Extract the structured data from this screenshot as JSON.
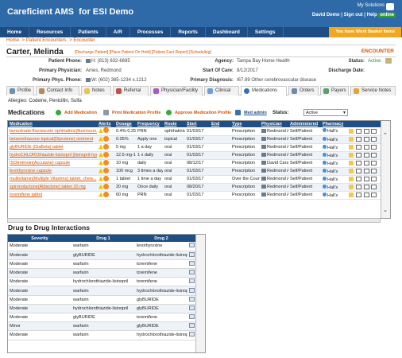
{
  "header": {
    "app_title": "Careficient AMS",
    "org": "for ESI Demo",
    "my_solutions": "My Solutions",
    "user": "David Demo",
    "sign_out": "Sign out",
    "help": "Help",
    "online": "online"
  },
  "nav": [
    "Home",
    "Resources",
    "Patients",
    "A/R",
    "Processes",
    "Reports",
    "Dashboard",
    "Settings"
  ],
  "basket": "You have Work Basket items",
  "breadcrumb": [
    "Home",
    "Patient Encounters",
    "Encounter"
  ],
  "patient": {
    "name": "Carter, Melinda",
    "links": "[Discharge Patient] [Place Patient On Hold] [Patient Fact Report] [Scheduling]",
    "encounter": "ENCOUNTER",
    "phone_label": "Patient Phone:",
    "phone": "H: (813) 632-6685",
    "agency_label": "Agency:",
    "agency": "Tampa Bay Home Health",
    "status_label": "Status:",
    "status": "Active",
    "prim_phys_label": "Primary Physician:",
    "prim_phys": "Ames, Redmond",
    "soc_label": "Start Of Care:",
    "soc": "8/12/2017",
    "dc_label": "Discharge Date:",
    "pphone_label": "Primary Phys. Phone:",
    "pphone": "W: (602) 385-1234 x.1212",
    "diag_label": "Primary Diagnosis:",
    "diag": "I67.89 Other cerebrovascular disease"
  },
  "tabs": [
    "Profile",
    "Contact Info",
    "Notes",
    "Referral",
    "Physician/Facility",
    "Clinical",
    "Medications",
    "Orders",
    "Payers",
    "Service Notes"
  ],
  "allergies": "Allergies: Codeine, Penicillin, Sulfa",
  "meds_bar": {
    "title": "Medications",
    "add": "Add Medication",
    "print": "Print Medication Profile",
    "approve": "Approve Medication Profile",
    "admin": "Med admin",
    "status_label": "Status:",
    "status_value": "Active"
  },
  "med_columns": [
    "Medication",
    "Alerts",
    "Dosage",
    "Frequency",
    "Route",
    "Start",
    "End",
    "Type",
    "Physician",
    "Administered",
    "Pharmacy"
  ],
  "medications": [
    [
      "benoxinate-fluorescein ophthalmic(fluorescei...",
      "0.4%-0.25%",
      "PRN",
      "ophthalmic",
      "01/03/17",
      "",
      "Prescription",
      "Redmond Ames",
      "Self/Patient",
      "Hall's"
    ],
    [
      "betamethasone topical(Diprolene) ointment",
      "0.05%",
      "Apply one",
      "topical",
      "01/03/17",
      "",
      "Prescription",
      "Redmond Ames",
      "Self/Patient",
      "Hall's"
    ],
    [
      "glyBURIDE (DiaBeta) tablet",
      "5 mg",
      "1 a day",
      "oral",
      "01/03/17",
      "",
      "Prescription",
      "Redmond Ames",
      "Self/Patient",
      "Hall's"
    ],
    [
      "hydroCHLOROthiazide-lisinopril (lisinopril-hyd...",
      "12.5 mg-1...",
      "1 x daily",
      "oral",
      "01/03/17",
      "",
      "Prescription",
      "Redmond Ames",
      "Self/Patient",
      "Hall's"
    ],
    [
      "ISOtretinoin(Accutane) capsule",
      "10 mg",
      "daily",
      "oral",
      "08/12/17",
      "",
      "Prescription",
      "David Carson",
      "Self/Patient",
      "Hall's"
    ],
    [
      "levothyroxine capsule",
      "100 mcg",
      "3 times a day",
      "oral",
      "01/03/17",
      "",
      "Prescription",
      "Redmond Ames",
      "Self/Patient",
      "Hall's"
    ],
    [
      "multivitamin(Multiple Vitamins) tablet, chew...",
      "1 tablet",
      "1 time a day",
      "oral",
      "01/03/17",
      "",
      "Over the Counter",
      "Redmond Ames",
      "Self/Patient",
      "Hall's"
    ],
    [
      "spironolactone(Aldactone) tablet 20 mg",
      "20 mg",
      "Once daily",
      "oral",
      "08/20/17",
      "",
      "Prescription",
      "Redmond Ames",
      "Self/Patient",
      "Hall's"
    ],
    [
      "toremifene tablet",
      "60 mg",
      "PRN",
      "oral",
      "01/03/17",
      "",
      "Prescription",
      "Redmond Ames",
      "Self/Patient",
      "Hall's"
    ]
  ],
  "dd": {
    "title": "Drug to Drug Interactions",
    "columns": [
      "Severity",
      "Drug 1",
      "Drug 2"
    ],
    "rows": [
      [
        "Moderate",
        "warfarin",
        "levothyroxine"
      ],
      [
        "Moderate",
        "glyBURIDE",
        "hydrochlorothiazide-lisinopril"
      ],
      [
        "Moderate",
        "warfarin",
        "toremifene"
      ],
      [
        "Moderate",
        "warfarin",
        "toremifene"
      ],
      [
        "Moderate",
        "hydrochlorothiazide-lisinopril",
        "toremifene"
      ],
      [
        "Moderate",
        "warfarin",
        "hydrochlorothiazide-lisinopril"
      ],
      [
        "Moderate",
        "warfarin",
        "glyBURIDE"
      ],
      [
        "Moderate",
        "hydrochlorothiazide-lisinopril",
        "glyBURIDE"
      ],
      [
        "Moderate",
        "glyBURIDE",
        "toremifene"
      ],
      [
        "Minor",
        "warfarin",
        "glyBURIDE"
      ],
      [
        "Moderate",
        "warfarin",
        "hydrochlorothiazide-lisinopril"
      ]
    ]
  },
  "colors": {
    "header": "#2f6aa8",
    "nav": "#1e4d86",
    "accent": "#d35400",
    "table_header": "#1f4f85",
    "basket": "#f2a81e"
  }
}
